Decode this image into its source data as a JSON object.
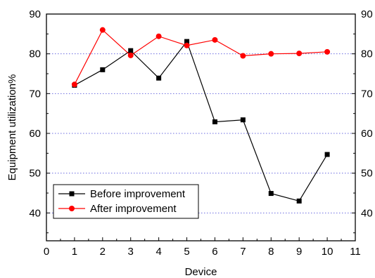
{
  "chart_data": {
    "type": "line",
    "title": "",
    "xlabel": "Device",
    "ylabel": "Equipment utilization%",
    "xlim": [
      0,
      11
    ],
    "ylim": [
      33,
      90
    ],
    "xticks": [
      0,
      1,
      2,
      3,
      4,
      5,
      6,
      7,
      8,
      9,
      10,
      11
    ],
    "yticks": [
      40,
      50,
      60,
      70,
      80,
      90
    ],
    "right_axis_ticks": [
      40,
      50,
      60,
      70,
      80,
      90
    ],
    "grid": "horizontal dotted",
    "legend_position": "bottom-left",
    "series": [
      {
        "name": "Before improvement",
        "color": "#000000",
        "marker": "square",
        "x": [
          1,
          2,
          3,
          4,
          5,
          6,
          7,
          8,
          9,
          10
        ],
        "y": [
          72.1,
          76.0,
          80.8,
          73.9,
          83.1,
          62.9,
          63.4,
          44.9,
          43.0,
          54.7
        ]
      },
      {
        "name": "After improvement",
        "color": "#ff0000",
        "marker": "circle",
        "x": [
          1,
          2,
          3,
          4,
          5,
          6,
          7,
          8,
          9,
          10
        ],
        "y": [
          72.3,
          86.0,
          79.6,
          84.4,
          82.1,
          83.5,
          79.5,
          80.0,
          80.1,
          80.5
        ]
      }
    ]
  }
}
